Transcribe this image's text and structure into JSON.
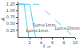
{
  "chart_data": {
    "type": "line",
    "xlabel": "f →",
    "ylabel": "A",
    "color": "#55ccee",
    "series": [
      {
        "x": [
          0,
          1.0,
          1.8
        ],
        "values": [
          1.25,
          1.25,
          0.0
        ],
        "line_style": "solid"
      },
      {
        "x": [
          0,
          2.0,
          3.0
        ],
        "values": [
          1.25,
          1.25,
          0.0
        ],
        "line_style": "solid"
      },
      {
        "x": [
          0,
          3.5,
          9.5
        ],
        "values": [
          1.25,
          1.25,
          0.05
        ],
        "line_style": "dashed"
      }
    ],
    "xlim": [
      0,
      10
    ],
    "ylim": [
      0,
      1.35
    ],
    "xticks": [
      2,
      4,
      6,
      8,
      10
    ],
    "yticks": [
      0.25,
      {
        "value": 0.5,
        "label": "0.50"
      },
      0.75,
      {
        "value": 1.0,
        "label": "1.00"
      },
      1.25
    ],
    "annotations": [
      {
        "text": "1µm=1mm",
        "x": 1.0,
        "y": 0.05
      },
      {
        "text": "5µm=1mm",
        "x": 2.2,
        "y": 0.05
      },
      {
        "text": "1µm=10mm",
        "x": 6.0,
        "y": 0.16
      }
    ],
    "grid": false
  }
}
